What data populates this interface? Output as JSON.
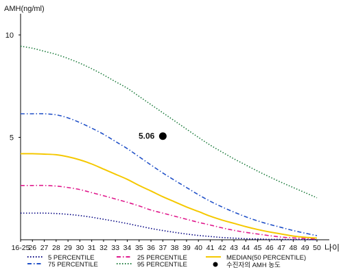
{
  "chart_data": {
    "type": "line",
    "ylabel": "AMH(ng/ml)",
    "xlabel": "나이",
    "y_ticks": [
      {
        "label": "10",
        "value": 10
      },
      {
        "label": "5",
        "value": 5
      }
    ],
    "ylim": [
      0,
      11
    ],
    "categories": [
      "16-25",
      "26",
      "27",
      "28",
      "29",
      "30",
      "31",
      "32",
      "33",
      "34",
      "35",
      "36",
      "37",
      "38",
      "39",
      "40",
      "41",
      "42",
      "43",
      "44",
      "45",
      "46",
      "47",
      "48",
      "49",
      "50"
    ],
    "grid": false,
    "legend_position": "bottom",
    "series": [
      {
        "name": "5 PERCENTILE",
        "color": "#000080",
        "style": "dotted",
        "values": [
          1.3,
          1.3,
          1.3,
          1.28,
          1.24,
          1.18,
          1.1,
          1.0,
          0.9,
          0.79,
          0.67,
          0.55,
          0.45,
          0.36,
          0.28,
          0.21,
          0.16,
          0.11,
          0.08,
          0.05,
          0.04,
          0.02,
          0.02,
          0.01,
          0.01,
          0.0
        ]
      },
      {
        "name": "25 PERCENTILE",
        "color": "#e0188c",
        "style": "dashdot",
        "values": [
          2.65,
          2.65,
          2.65,
          2.62,
          2.55,
          2.45,
          2.3,
          2.15,
          1.99,
          1.83,
          1.65,
          1.45,
          1.3,
          1.15,
          1.0,
          0.85,
          0.72,
          0.58,
          0.46,
          0.36,
          0.28,
          0.2,
          0.13,
          0.09,
          0.06,
          0.03
        ]
      },
      {
        "name": "MEDIAN(50 PERCENTILE)",
        "color": "#f5c800",
        "style": "solid",
        "values": [
          4.2,
          4.2,
          4.18,
          4.15,
          4.05,
          3.9,
          3.7,
          3.45,
          3.2,
          2.95,
          2.65,
          2.38,
          2.1,
          1.85,
          1.6,
          1.38,
          1.15,
          0.96,
          0.8,
          0.64,
          0.5,
          0.38,
          0.28,
          0.18,
          0.12,
          0.08
        ]
      },
      {
        "name": "75 PERCENTILE",
        "color": "#2050c8",
        "style": "dashdot",
        "values": [
          6.15,
          6.15,
          6.15,
          6.1,
          5.95,
          5.72,
          5.45,
          5.15,
          4.8,
          4.45,
          4.05,
          3.65,
          3.26,
          2.9,
          2.55,
          2.2,
          1.88,
          1.6,
          1.35,
          1.12,
          0.92,
          0.75,
          0.6,
          0.45,
          0.32,
          0.2
        ]
      },
      {
        "name": "95 PERCENTILE",
        "color": "#1a7a3a",
        "style": "dotted",
        "values": [
          9.45,
          9.35,
          9.2,
          9.05,
          8.85,
          8.62,
          8.35,
          8.05,
          7.72,
          7.4,
          7.0,
          6.6,
          6.2,
          5.8,
          5.4,
          5.0,
          4.62,
          4.28,
          3.95,
          3.65,
          3.35,
          3.07,
          2.8,
          2.55,
          2.3,
          2.05
        ]
      }
    ],
    "annotation": {
      "label": "5.06",
      "category": "37",
      "value": 5.06,
      "legend": "수진자의 AMH 농도"
    }
  }
}
